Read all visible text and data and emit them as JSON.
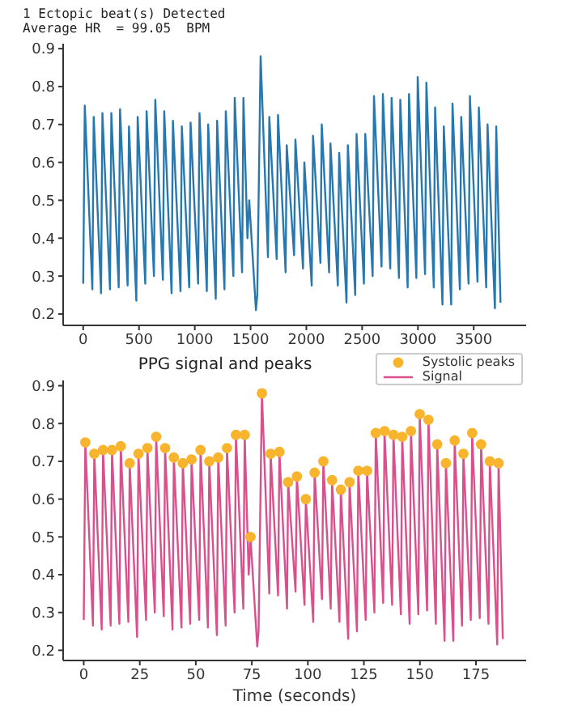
{
  "chart_data": [
    {
      "type": "line",
      "title": "1 Ectopic beat(s) Detected",
      "subtitle": "Average HR  = 99.05  BPM",
      "xlim": [
        -180,
        3970
      ],
      "xticks": [
        0,
        500,
        1000,
        1500,
        2000,
        2500,
        3000,
        3500
      ],
      "ylim": [
        0.17,
        0.913
      ],
      "yticks": [
        0.2,
        0.3,
        0.4,
        0.5,
        0.6,
        0.7,
        0.8,
        0.9
      ],
      "series": [
        {
          "color": "#2878b0",
          "x": [
            0,
            14,
            82,
            94,
            160,
            172,
            240,
            252,
            318,
            330,
            398,
            410,
            476,
            488,
            556,
            568,
            634,
            646,
            714,
            726,
            792,
            804,
            872,
            884,
            950,
            962,
            1030,
            1042,
            1108,
            1120,
            1188,
            1200,
            1266,
            1278,
            1346,
            1358,
            1424,
            1436,
            1472,
            1488,
            1548,
            1560,
            1590,
            1656,
            1668,
            1734,
            1746,
            1814,
            1824,
            1890,
            1902,
            1970,
            1982,
            2048,
            2060,
            2126,
            2138,
            2204,
            2216,
            2282,
            2294,
            2360,
            2372,
            2438,
            2450,
            2516,
            2528,
            2594,
            2606,
            2674,
            2686,
            2752,
            2764,
            2830,
            2842,
            2908,
            2920,
            2986,
            2998,
            3064,
            3076,
            3142,
            3154,
            3220,
            3232,
            3298,
            3310,
            3376,
            3388,
            3454,
            3466,
            3534,
            3546,
            3612,
            3624,
            3690,
            3702,
            3740
          ],
          "values": [
            0.28,
            0.75,
            0.265,
            0.72,
            0.255,
            0.73,
            0.265,
            0.73,
            0.27,
            0.74,
            0.275,
            0.695,
            0.235,
            0.72,
            0.28,
            0.735,
            0.3,
            0.765,
            0.29,
            0.735,
            0.255,
            0.71,
            0.26,
            0.695,
            0.27,
            0.705,
            0.28,
            0.73,
            0.26,
            0.7,
            0.24,
            0.71,
            0.265,
            0.735,
            0.3,
            0.77,
            0.31,
            0.77,
            0.4,
            0.5,
            0.21,
            0.25,
            0.88,
            0.35,
            0.72,
            0.345,
            0.725,
            0.31,
            0.645,
            0.355,
            0.66,
            0.32,
            0.6,
            0.275,
            0.67,
            0.335,
            0.7,
            0.31,
            0.65,
            0.275,
            0.625,
            0.23,
            0.645,
            0.25,
            0.675,
            0.28,
            0.675,
            0.3,
            0.775,
            0.325,
            0.78,
            0.32,
            0.77,
            0.295,
            0.765,
            0.27,
            0.78,
            0.295,
            0.825,
            0.305,
            0.81,
            0.27,
            0.745,
            0.225,
            0.695,
            0.225,
            0.755,
            0.265,
            0.72,
            0.28,
            0.775,
            0.285,
            0.745,
            0.27,
            0.7,
            0.215,
            0.695,
            0.23
          ]
        }
      ]
    },
    {
      "type": "line",
      "title": "PPG signal and peaks",
      "xlabel": "Time (seconds)",
      "xlim": [
        -9.2,
        197.4
      ],
      "xticks": [
        0,
        25,
        50,
        75,
        100,
        125,
        150,
        175
      ],
      "ylim": [
        0.173,
        0.914
      ],
      "yticks": [
        0.2,
        0.3,
        0.4,
        0.5,
        0.6,
        0.7,
        0.8,
        0.9
      ],
      "legend": "top right",
      "series": [
        {
          "type": "scatter",
          "marker": "circle",
          "name": "Systolic peaks",
          "color": "#f9b42d",
          "x": [
            0.7,
            4.7,
            8.6,
            12.6,
            16.5,
            20.5,
            24.4,
            28.4,
            32.3,
            36.3,
            40.2,
            44.2,
            48.1,
            52.1,
            56.0,
            60.0,
            63.9,
            67.9,
            71.8,
            74.4,
            79.5,
            83.4,
            87.3,
            91.2,
            95.1,
            99.1,
            103.0,
            106.9,
            110.8,
            114.7,
            118.6,
            122.5,
            126.4,
            130.3,
            134.2,
            138.2,
            142.1,
            146.0,
            149.9,
            153.8,
            157.7,
            161.6,
            165.5,
            169.4,
            173.3,
            177.3,
            181.2,
            185.1
          ],
          "values": [
            0.75,
            0.72,
            0.73,
            0.73,
            0.74,
            0.695,
            0.72,
            0.735,
            0.765,
            0.735,
            0.71,
            0.695,
            0.705,
            0.73,
            0.7,
            0.71,
            0.735,
            0.77,
            0.77,
            0.5,
            0.88,
            0.72,
            0.725,
            0.645,
            0.66,
            0.6,
            0.67,
            0.7,
            0.65,
            0.625,
            0.645,
            0.675,
            0.675,
            0.775,
            0.78,
            0.77,
            0.765,
            0.78,
            0.825,
            0.81,
            0.745,
            0.695,
            0.755,
            0.72,
            0.775,
            0.745,
            0.7,
            0.695
          ]
        },
        {
          "name": "Signal",
          "color": "#d9508c",
          "x": [
            0,
            0.7,
            4.1,
            4.7,
            8.0,
            8.6,
            12.0,
            12.6,
            15.9,
            16.5,
            19.9,
            20.5,
            23.8,
            24.4,
            27.8,
            28.4,
            31.7,
            32.3,
            35.7,
            36.3,
            39.6,
            40.2,
            43.6,
            44.2,
            47.5,
            48.1,
            51.5,
            52.1,
            55.4,
            56.0,
            59.4,
            60.0,
            63.3,
            63.9,
            67.3,
            67.9,
            71.2,
            71.8,
            73.6,
            74.4,
            77.4,
            78.0,
            79.5,
            82.8,
            83.4,
            86.7,
            87.3,
            90.7,
            91.2,
            94.5,
            95.1,
            98.5,
            99.1,
            102.4,
            103.0,
            106.3,
            106.9,
            110.2,
            110.8,
            114.1,
            114.7,
            118.0,
            118.6,
            121.9,
            122.5,
            125.8,
            126.4,
            129.7,
            130.3,
            133.6,
            134.2,
            137.6,
            138.2,
            141.5,
            142.1,
            145.4,
            146.0,
            149.3,
            149.9,
            153.2,
            153.8,
            157.1,
            157.7,
            161.0,
            161.6,
            164.9,
            165.5,
            168.8,
            169.4,
            172.7,
            173.3,
            176.7,
            177.3,
            180.6,
            181.2,
            184.5,
            185.1,
            187.0
          ],
          "values": [
            0.28,
            0.75,
            0.265,
            0.72,
            0.255,
            0.73,
            0.265,
            0.73,
            0.27,
            0.74,
            0.275,
            0.695,
            0.235,
            0.72,
            0.28,
            0.735,
            0.3,
            0.765,
            0.29,
            0.735,
            0.255,
            0.71,
            0.26,
            0.695,
            0.27,
            0.705,
            0.28,
            0.73,
            0.26,
            0.7,
            0.24,
            0.71,
            0.265,
            0.735,
            0.3,
            0.77,
            0.31,
            0.77,
            0.4,
            0.5,
            0.21,
            0.25,
            0.88,
            0.35,
            0.72,
            0.345,
            0.725,
            0.31,
            0.645,
            0.355,
            0.66,
            0.32,
            0.6,
            0.275,
            0.67,
            0.335,
            0.7,
            0.31,
            0.65,
            0.275,
            0.625,
            0.23,
            0.645,
            0.25,
            0.675,
            0.28,
            0.675,
            0.3,
            0.775,
            0.325,
            0.78,
            0.32,
            0.77,
            0.295,
            0.765,
            0.27,
            0.78,
            0.295,
            0.825,
            0.305,
            0.81,
            0.27,
            0.745,
            0.225,
            0.695,
            0.225,
            0.755,
            0.265,
            0.72,
            0.28,
            0.775,
            0.285,
            0.745,
            0.27,
            0.7,
            0.215,
            0.695,
            0.23
          ]
        }
      ]
    }
  ]
}
